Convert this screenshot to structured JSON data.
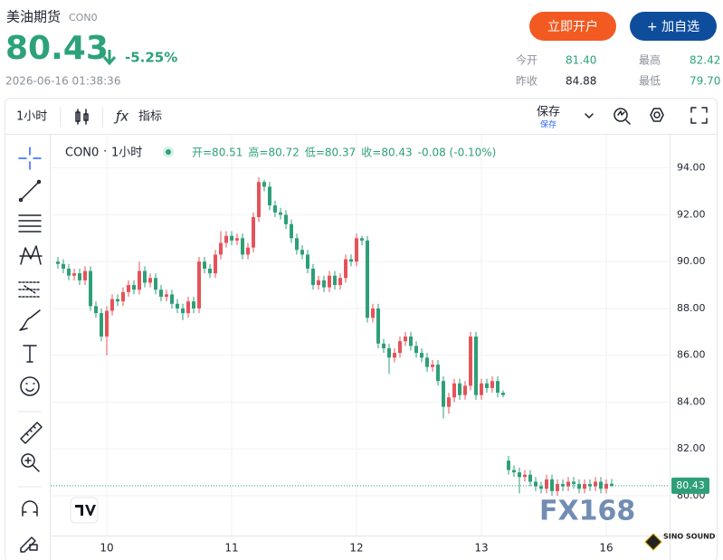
{
  "header": {
    "name": "美油期货",
    "code": "CON0",
    "price": "80.43",
    "change": "-5.25%",
    "time": "2026-06-16 01:38:36",
    "buttons": [
      "立即开户",
      "+ 加自选"
    ],
    "stats": [
      {
        "label": "今开",
        "value": "81.40"
      },
      {
        "label": "最高",
        "value": "82.42"
      },
      {
        "label": "昨收",
        "value": "84.88"
      },
      {
        "label": "最低",
        "value": "79.70"
      }
    ]
  },
  "toolbar": {
    "interval": "1小时",
    "indicators": "指标",
    "save": "保存",
    "save_status": "保存"
  },
  "watermarks": [
    "FX168",
    "SINO SOUND"
  ],
  "chart_data": {
    "type": "candlestick",
    "legend": {
      "symbol": "CON0",
      "interval": "1小时",
      "ohlc": [
        "开=80.51",
        "高=80.72",
        "低=80.37",
        "收=80.43",
        "-0.08 (-0.10%)"
      ]
    },
    "up_color": "#e5535a",
    "down_color": "#2e9f78",
    "categories": [
      null,
      null,
      null,
      null,
      null,
      null,
      null,
      null,
      null,
      "10",
      null,
      null,
      null,
      null,
      null,
      null,
      null,
      null,
      null,
      null,
      null,
      null,
      null,
      null,
      null,
      null,
      null,
      null,
      null,
      null,
      null,
      null,
      "11",
      null,
      null,
      null,
      null,
      null,
      null,
      null,
      null,
      null,
      null,
      null,
      null,
      null,
      null,
      null,
      null,
      null,
      null,
      null,
      null,
      null,
      null,
      "12",
      null,
      null,
      null,
      null,
      null,
      null,
      null,
      null,
      null,
      null,
      null,
      null,
      null,
      null,
      null,
      null,
      null,
      null,
      null,
      null,
      null,
      null,
      "13",
      null,
      null,
      null,
      null,
      null,
      null,
      null,
      null,
      null,
      null,
      null,
      null,
      null,
      null,
      null,
      null,
      null,
      null,
      null,
      null,
      null,
      null,
      "16",
      null
    ],
    "open": [
      90.0,
      89.9,
      89.7,
      89.4,
      89.5,
      89.2,
      89.6,
      88.1,
      87.8,
      86.8,
      87.9,
      88.4,
      88.3,
      88.7,
      89.0,
      88.8,
      89.6,
      89.1,
      89.3,
      88.8,
      88.5,
      88.6,
      88.2,
      88.0,
      87.8,
      88.3,
      88.0,
      90.0,
      89.7,
      89.5,
      90.3,
      90.8,
      91.1,
      90.9,
      91.0,
      90.3,
      90.6,
      91.9,
      93.4,
      93.2,
      92.4,
      92.1,
      92.0,
      91.6,
      91.0,
      90.5,
      90.3,
      89.7,
      89.0,
      89.2,
      88.9,
      89.4,
      89.0,
      89.3,
      90.1,
      90.0,
      91.0,
      90.9,
      87.6,
      88.0,
      86.5,
      86.3,
      85.9,
      86.1,
      86.6,
      86.8,
      86.4,
      86.1,
      85.9,
      85.5,
      85.6,
      84.9,
      83.8,
      84.2,
      84.8,
      84.3,
      84.7,
      86.8,
      84.3,
      84.8,
      84.6,
      84.9,
      84.4,
      81.5,
      81.1,
      81.0,
      80.8,
      80.9,
      80.6,
      80.4,
      80.3,
      80.7,
      80.2,
      80.5,
      80.4,
      80.6,
      80.5,
      80.3,
      80.5,
      80.4,
      80.6,
      80.3,
      80.51
    ],
    "high": [
      90.2,
      90.1,
      89.9,
      89.7,
      89.7,
      89.8,
      89.8,
      88.3,
      88.0,
      88.1,
      88.6,
      88.6,
      88.9,
      89.2,
      89.2,
      90.0,
      89.8,
      89.5,
      89.5,
      89.0,
      88.8,
      88.8,
      88.4,
      88.2,
      88.5,
      88.5,
      90.2,
      90.2,
      89.9,
      90.5,
      91.3,
      91.3,
      91.3,
      91.2,
      91.2,
      90.8,
      92.1,
      93.6,
      93.5,
      93.4,
      92.6,
      92.3,
      92.2,
      91.8,
      91.2,
      90.7,
      90.5,
      89.9,
      89.4,
      89.4,
      89.6,
      89.6,
      89.5,
      90.3,
      90.3,
      91.2,
      91.1,
      91.1,
      88.2,
      88.2,
      86.7,
      86.5,
      86.3,
      86.8,
      87.0,
      87.0,
      86.6,
      86.3,
      86.1,
      85.8,
      85.8,
      85.1,
      84.4,
      85.0,
      85.0,
      84.9,
      87.0,
      87.0,
      85.0,
      85.0,
      85.1,
      85.1,
      84.5,
      81.7,
      81.3,
      81.2,
      81.1,
      81.1,
      80.8,
      80.6,
      80.9,
      80.9,
      80.7,
      80.7,
      80.8,
      80.8,
      80.7,
      80.7,
      80.7,
      80.8,
      80.8,
      80.7,
      80.72
    ],
    "low": [
      89.7,
      89.5,
      89.2,
      89.2,
      89.0,
      89.0,
      87.9,
      87.6,
      86.6,
      86.0,
      87.7,
      88.1,
      88.1,
      88.5,
      88.6,
      88.6,
      88.9,
      88.9,
      88.6,
      88.3,
      88.3,
      88.0,
      87.8,
      87.5,
      87.6,
      87.8,
      87.8,
      89.5,
      89.3,
      89.3,
      90.1,
      90.6,
      90.7,
      90.7,
      90.1,
      90.1,
      90.4,
      91.7,
      93.0,
      92.2,
      91.9,
      91.8,
      91.4,
      90.8,
      90.3,
      90.1,
      89.5,
      88.8,
      88.8,
      88.7,
      88.7,
      88.8,
      88.8,
      89.1,
      89.8,
      89.8,
      90.7,
      87.4,
      87.4,
      86.3,
      86.1,
      85.2,
      85.7,
      85.9,
      86.4,
      86.2,
      85.9,
      85.7,
      85.3,
      85.3,
      84.7,
      83.3,
      83.5,
      84.0,
      84.1,
      84.1,
      84.5,
      84.1,
      84.1,
      84.4,
      84.4,
      84.2,
      84.2,
      80.9,
      80.8,
      80.1,
      80.6,
      80.4,
      80.2,
      80.1,
      80.1,
      80.0,
      80.0,
      80.2,
      80.2,
      80.3,
      80.1,
      80.1,
      80.2,
      80.2,
      80.1,
      80.1,
      80.37
    ],
    "close": [
      89.9,
      89.7,
      89.4,
      89.5,
      89.2,
      89.6,
      88.1,
      87.8,
      86.8,
      87.9,
      88.4,
      88.3,
      88.7,
      89.0,
      88.8,
      89.6,
      89.1,
      89.3,
      88.8,
      88.5,
      88.6,
      88.2,
      88.0,
      87.8,
      88.3,
      88.0,
      90.0,
      89.7,
      89.5,
      90.3,
      90.8,
      91.1,
      90.9,
      91.0,
      90.3,
      90.6,
      91.9,
      93.4,
      93.2,
      92.4,
      92.1,
      92.0,
      91.6,
      91.0,
      90.5,
      90.3,
      89.7,
      89.0,
      89.2,
      88.9,
      89.4,
      89.0,
      89.3,
      90.1,
      90.0,
      91.0,
      90.9,
      87.6,
      88.0,
      86.5,
      86.3,
      85.9,
      86.1,
      86.6,
      86.8,
      86.4,
      86.1,
      85.9,
      85.5,
      85.6,
      84.9,
      83.8,
      84.2,
      84.8,
      84.3,
      84.7,
      86.8,
      84.3,
      84.8,
      84.6,
      84.9,
      84.4,
      84.3,
      81.1,
      81.0,
      80.8,
      80.9,
      80.6,
      80.4,
      80.3,
      80.7,
      80.2,
      80.5,
      80.4,
      80.6,
      80.5,
      80.3,
      80.5,
      80.4,
      80.6,
      80.3,
      80.51,
      80.43
    ],
    "last_price": 80.43,
    "ylim": [
      78.3,
      95.3
    ],
    "yticks": [
      {
        "value": 80,
        "label": "80.00"
      },
      {
        "value": 82,
        "label": "82.00"
      },
      {
        "value": 84,
        "label": "84.00"
      },
      {
        "value": 86,
        "label": "86.00"
      },
      {
        "value": 88,
        "label": "88.00"
      },
      {
        "value": 90,
        "label": "90.00"
      },
      {
        "value": 92,
        "label": "92.00"
      },
      {
        "value": 94,
        "label": "94.00"
      }
    ],
    "grid": true
  }
}
